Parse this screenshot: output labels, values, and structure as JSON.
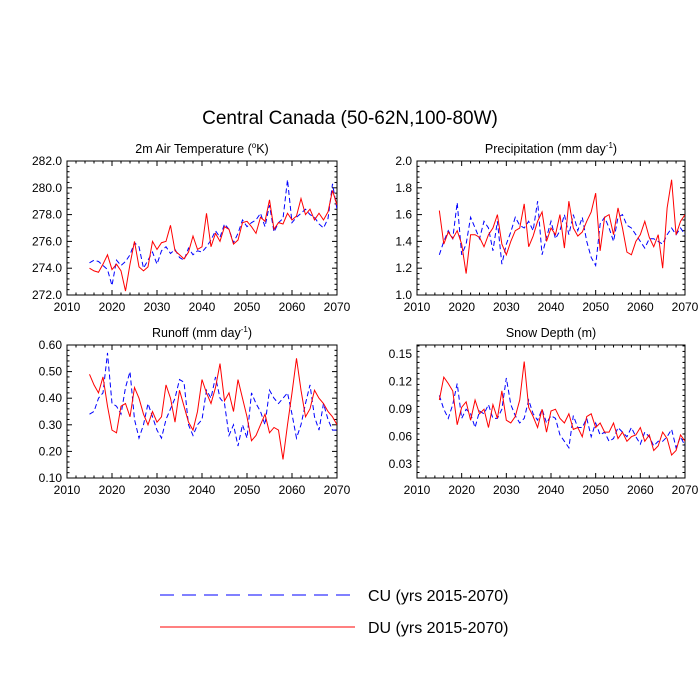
{
  "figure_title": "Central Canada (50-62N,100-80W)",
  "legend": [
    {
      "label": "CU (yrs 2015-2070)",
      "color": "#0000ff",
      "style": "dashed"
    },
    {
      "label": "DU (yrs 2015-2070)",
      "color": "#ff0000",
      "style": "solid"
    }
  ],
  "chart_data": [
    {
      "type": "line",
      "title": "2m Air Temperature (°K)",
      "title_main": "2m Air Temperature (",
      "title_sup": "o",
      "title_end": "K)",
      "xlim": [
        2010,
        2070
      ],
      "ylim": [
        272.0,
        282.0
      ],
      "xticks": [
        2010,
        2020,
        2030,
        2040,
        2050,
        2060,
        2070
      ],
      "yticks": [
        272.0,
        274.0,
        276.0,
        278.0,
        280.0,
        282.0
      ],
      "ytick_labels": [
        "272.0",
        "274.0",
        "276.0",
        "278.0",
        "280.0",
        "282.0"
      ],
      "x_start": 2015,
      "series": [
        {
          "name": "CU",
          "color": "#0000ff",
          "dashed": true,
          "values": [
            274.4,
            274.6,
            274.5,
            274.2,
            273.9,
            272.7,
            274.6,
            274.2,
            274.5,
            275.0,
            275.9,
            275.6,
            274.0,
            274.6,
            275.2,
            274.3,
            275.3,
            275.6,
            275.1,
            275.4,
            274.8,
            274.6,
            275.5,
            275.0,
            275.3,
            275.2,
            275.6,
            276.1,
            276.8,
            276.3,
            277.3,
            276.9,
            275.9,
            276.6,
            277.6,
            277.1,
            277.4,
            277.6,
            278.1,
            277.1,
            278.7,
            276.7,
            277.4,
            277.7,
            280.6,
            277.4,
            277.8,
            278.1,
            278.4,
            278.0,
            277.8,
            277.3,
            277.0,
            277.7,
            280.3,
            278.4
          ]
        },
        {
          "name": "DU",
          "color": "#ff0000",
          "dashed": false,
          "values": [
            274.0,
            273.8,
            273.7,
            274.3,
            275.0,
            273.9,
            274.3,
            273.8,
            272.3,
            274.3,
            276.0,
            274.1,
            273.8,
            274.1,
            276.0,
            275.4,
            275.9,
            276.0,
            277.2,
            275.3,
            275.0,
            274.7,
            275.2,
            276.4,
            275.4,
            275.6,
            278.1,
            275.6,
            276.6,
            276.0,
            277.1,
            276.9,
            275.8,
            276.1,
            277.4,
            277.5,
            277.1,
            276.6,
            277.8,
            277.5,
            279.1,
            276.9,
            277.4,
            277.3,
            278.1,
            277.6,
            277.9,
            279.2,
            278.0,
            278.4,
            277.6,
            278.1,
            277.6,
            278.2,
            279.8,
            278.7
          ]
        }
      ]
    },
    {
      "type": "line",
      "title": "Precipitation (mm day-1)",
      "title_main": "Precipitation (mm day",
      "title_sup": "-1",
      "title_end": ")",
      "xlim": [
        2010,
        2070
      ],
      "ylim": [
        1.0,
        2.0
      ],
      "xticks": [
        2010,
        2020,
        2030,
        2040,
        2050,
        2060,
        2070
      ],
      "yticks": [
        1.0,
        1.2,
        1.4,
        1.6,
        1.8,
        2.0
      ],
      "ytick_labels": [
        "1.0",
        "1.2",
        "1.4",
        "1.6",
        "1.8",
        "2.0"
      ],
      "x_start": 2015,
      "series": [
        {
          "name": "CU",
          "color": "#0000ff",
          "dashed": true,
          "values": [
            1.3,
            1.4,
            1.48,
            1.42,
            1.69,
            1.3,
            1.38,
            1.58,
            1.5,
            1.42,
            1.55,
            1.5,
            1.33,
            1.55,
            1.23,
            1.38,
            1.47,
            1.58,
            1.52,
            1.5,
            1.55,
            1.48,
            1.7,
            1.3,
            1.43,
            1.55,
            1.42,
            1.48,
            1.6,
            1.45,
            1.6,
            1.48,
            1.58,
            1.4,
            1.28,
            1.22,
            1.53,
            1.58,
            1.5,
            1.4,
            1.58,
            1.6,
            1.52,
            1.5,
            1.45,
            1.4,
            1.35,
            1.42,
            1.42,
            1.4,
            1.38,
            1.45,
            1.5,
            1.45,
            1.5,
            1.45
          ]
        },
        {
          "name": "DU",
          "color": "#ff0000",
          "dashed": false,
          "values": [
            1.63,
            1.38,
            1.47,
            1.42,
            1.48,
            1.38,
            1.16,
            1.45,
            1.45,
            1.43,
            1.36,
            1.45,
            1.5,
            1.6,
            1.38,
            1.3,
            1.4,
            1.48,
            1.5,
            1.68,
            1.36,
            1.44,
            1.55,
            1.62,
            1.4,
            1.5,
            1.45,
            1.6,
            1.35,
            1.7,
            1.5,
            1.44,
            1.47,
            1.55,
            1.62,
            1.76,
            1.33,
            1.58,
            1.6,
            1.45,
            1.65,
            1.5,
            1.32,
            1.3,
            1.4,
            1.45,
            1.55,
            1.43,
            1.36,
            1.45,
            1.2,
            1.65,
            1.86,
            1.45,
            1.55,
            1.6
          ]
        }
      ]
    },
    {
      "type": "line",
      "title": "Runoff (mm day-1)",
      "title_main": "Runoff (mm day",
      "title_sup": "-1",
      "title_end": ")",
      "xlim": [
        2010,
        2070
      ],
      "ylim": [
        0.1,
        0.6
      ],
      "xticks": [
        2010,
        2020,
        2030,
        2040,
        2050,
        2060,
        2070
      ],
      "yticks": [
        0.1,
        0.2,
        0.3,
        0.4,
        0.5,
        0.6
      ],
      "ytick_labels": [
        "0.10",
        "0.20",
        "0.30",
        "0.40",
        "0.50",
        "0.60"
      ],
      "x_start": 2015,
      "series": [
        {
          "name": "CU",
          "color": "#0000ff",
          "dashed": true,
          "values": [
            0.34,
            0.35,
            0.4,
            0.42,
            0.57,
            0.38,
            0.37,
            0.34,
            0.44,
            0.5,
            0.32,
            0.25,
            0.3,
            0.38,
            0.33,
            0.28,
            0.25,
            0.32,
            0.36,
            0.4,
            0.47,
            0.46,
            0.3,
            0.26,
            0.3,
            0.32,
            0.43,
            0.4,
            0.48,
            0.4,
            0.38,
            0.26,
            0.3,
            0.22,
            0.3,
            0.25,
            0.42,
            0.38,
            0.35,
            0.3,
            0.43,
            0.4,
            0.38,
            0.4,
            0.42,
            0.34,
            0.25,
            0.3,
            0.38,
            0.45,
            0.33,
            0.28,
            0.38,
            0.32,
            0.28,
            0.28
          ]
        },
        {
          "name": "DU",
          "color": "#ff0000",
          "dashed": false,
          "values": [
            0.49,
            0.45,
            0.42,
            0.48,
            0.37,
            0.28,
            0.27,
            0.37,
            0.38,
            0.33,
            0.44,
            0.4,
            0.34,
            0.3,
            0.35,
            0.31,
            0.33,
            0.45,
            0.4,
            0.31,
            0.43,
            0.37,
            0.31,
            0.28,
            0.35,
            0.47,
            0.42,
            0.38,
            0.44,
            0.53,
            0.39,
            0.42,
            0.35,
            0.47,
            0.4,
            0.33,
            0.24,
            0.26,
            0.3,
            0.34,
            0.27,
            0.29,
            0.28,
            0.17,
            0.3,
            0.42,
            0.55,
            0.43,
            0.33,
            0.36,
            0.43,
            0.4,
            0.38,
            0.35,
            0.33,
            0.3
          ]
        }
      ]
    },
    {
      "type": "line",
      "title": "Snow Depth (m)",
      "title_main": "Snow Depth (m)",
      "title_sup": "",
      "title_end": "",
      "xlim": [
        2010,
        2070
      ],
      "ylim": [
        0.015,
        0.16
      ],
      "xticks": [
        2010,
        2020,
        2030,
        2040,
        2050,
        2060,
        2070
      ],
      "yticks": [
        0.03,
        0.06,
        0.09,
        0.12,
        0.15
      ],
      "ytick_labels": [
        "0.03",
        "0.06",
        "0.09",
        "0.12",
        "0.15"
      ],
      "x_start": 2015,
      "series": [
        {
          "name": "CU",
          "color": "#0000ff",
          "dashed": true,
          "values": [
            0.105,
            0.09,
            0.08,
            0.095,
            0.118,
            0.08,
            0.09,
            0.085,
            0.07,
            0.088,
            0.085,
            0.095,
            0.08,
            0.08,
            0.09,
            0.124,
            0.095,
            0.083,
            0.075,
            0.08,
            0.1,
            0.085,
            0.078,
            0.09,
            0.075,
            0.083,
            0.08,
            0.062,
            0.055,
            0.048,
            0.083,
            0.07,
            0.07,
            0.08,
            0.06,
            0.075,
            0.062,
            0.065,
            0.055,
            0.058,
            0.07,
            0.065,
            0.06,
            0.07,
            0.06,
            0.052,
            0.065,
            0.06,
            0.05,
            0.055,
            0.055,
            0.06,
            0.068,
            0.048,
            0.06,
            0.05
          ]
        },
        {
          "name": "DU",
          "color": "#ff0000",
          "dashed": false,
          "values": [
            0.1,
            0.125,
            0.118,
            0.11,
            0.073,
            0.092,
            0.098,
            0.078,
            0.1,
            0.085,
            0.09,
            0.07,
            0.095,
            0.08,
            0.11,
            0.078,
            0.075,
            0.082,
            0.1,
            0.142,
            0.092,
            0.082,
            0.07,
            0.09,
            0.065,
            0.088,
            0.09,
            0.08,
            0.075,
            0.085,
            0.068,
            0.07,
            0.06,
            0.082,
            0.085,
            0.07,
            0.075,
            0.065,
            0.065,
            0.075,
            0.058,
            0.065,
            0.055,
            0.06,
            0.062,
            0.07,
            0.055,
            0.062,
            0.045,
            0.05,
            0.065,
            0.058,
            0.04,
            0.045,
            0.062,
            0.055
          ]
        }
      ]
    }
  ]
}
